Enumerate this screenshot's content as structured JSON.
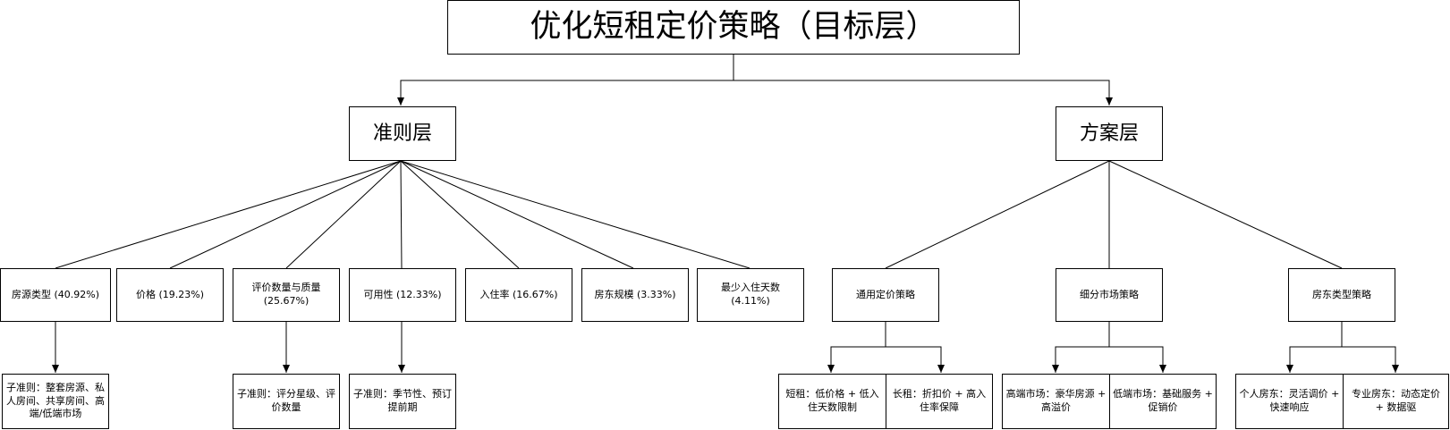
{
  "title": "优化短租定价策略（目标层）",
  "levels": {
    "criteria": "准则层",
    "plans": "方案层"
  },
  "criteria": [
    {
      "label": "房源类型 (40.92%)"
    },
    {
      "label": "价格 (19.23%)"
    },
    {
      "label": "评价数量与质量 (25.67%)"
    },
    {
      "label": "可用性 (12.33%)"
    },
    {
      "label": "入住率 (16.67%)"
    },
    {
      "label": "房东规模 (3.33%)"
    },
    {
      "label": "最少入住天数 (4.11%)"
    }
  ],
  "sub_criteria": [
    {
      "label": "子准则：整套房源、私人房间、共享房间、高端/低端市场"
    },
    {
      "label": "子准则：评分星级、评价数量"
    },
    {
      "label": "子准则：季节性、预订提前期"
    }
  ],
  "plans": [
    {
      "label": "通用定价策略"
    },
    {
      "label": "细分市场策略"
    },
    {
      "label": "房东类型策略"
    }
  ],
  "plan_details": [
    {
      "label": "短租：低价格 + 低入住天数限制"
    },
    {
      "label": "长租：折扣价 + 高入住率保障"
    },
    {
      "label": "高端市场：豪华房源 + 高溢价"
    },
    {
      "label": "低端市场：基础服务 + 促销价"
    },
    {
      "label": "个人房东：灵活调价 + 快速响应"
    },
    {
      "label": "专业房东：动态定价 + 数据驱"
    }
  ]
}
